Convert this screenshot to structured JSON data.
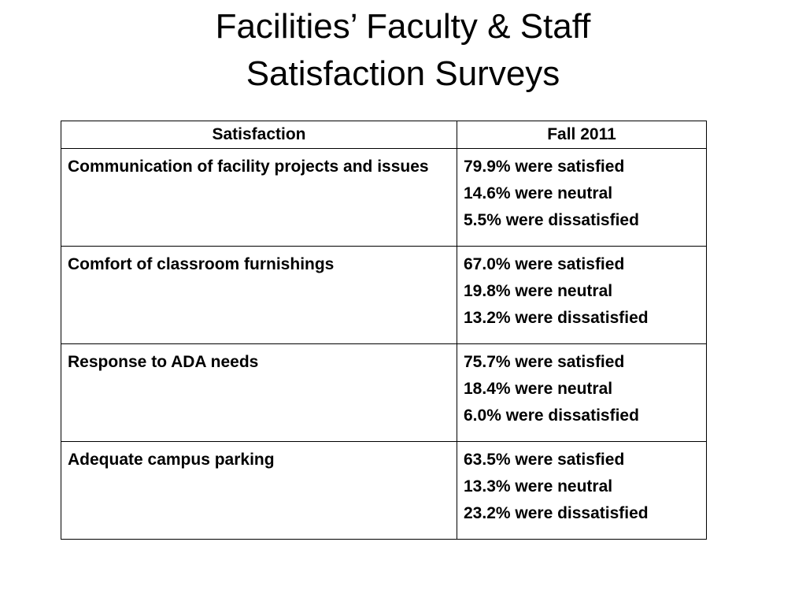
{
  "title": {
    "line1": "Facilities’ Faculty & Staff",
    "line2": "Satisfaction Surveys"
  },
  "table": {
    "headers": [
      "Satisfaction",
      "Fall 2011"
    ],
    "rows": [
      {
        "item": "Communication of facility projects and issues",
        "results": [
          "79.9% were satisfied",
          "14.6% were neutral",
          "5.5% were dissatisfied"
        ]
      },
      {
        "item": "Comfort of classroom furnishings",
        "results": [
          "67.0% were satisfied",
          "19.8% were neutral",
          "13.2% were dissatisfied"
        ]
      },
      {
        "item": "Response to ADA needs",
        "results": [
          "75.7% were satisfied",
          "18.4% were neutral",
          "6.0% were dissatisfied"
        ]
      },
      {
        "item": "Adequate campus parking",
        "results": [
          "63.5% were satisfied",
          "13.3% were neutral",
          "23.2% were dissatisfied"
        ]
      }
    ]
  }
}
